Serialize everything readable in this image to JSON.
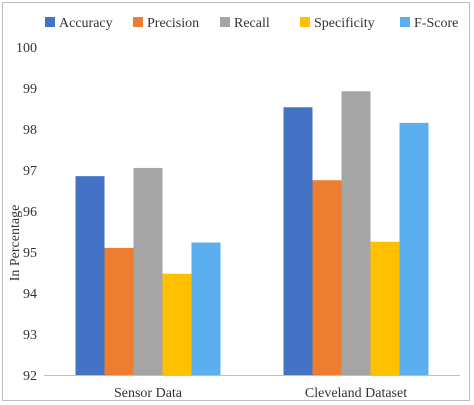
{
  "chart_data": {
    "type": "bar",
    "categories": [
      "Sensor Data",
      "Cleveland Dataset"
    ],
    "series": [
      {
        "name": "Accuracy",
        "color": "#4472C4",
        "values": [
          96.85,
          98.53
        ]
      },
      {
        "name": "Precision",
        "color": "#ED7D31",
        "values": [
          95.1,
          96.75
        ]
      },
      {
        "name": "Recall",
        "color": "#A5A5A5",
        "values": [
          97.05,
          98.92
        ]
      },
      {
        "name": "Specificity",
        "color": "#FFC000",
        "values": [
          94.47,
          95.25
        ]
      },
      {
        "name": "F-Score",
        "color": "#5BAFEF",
        "values": [
          95.23,
          98.15
        ]
      }
    ],
    "ylabel": "In Percentage",
    "ylim": [
      92,
      100
    ],
    "yticks": [
      "92",
      "93",
      "94",
      "95",
      "96",
      "97",
      "98",
      "99",
      "100"
    ],
    "grid": false,
    "legend": "top"
  }
}
